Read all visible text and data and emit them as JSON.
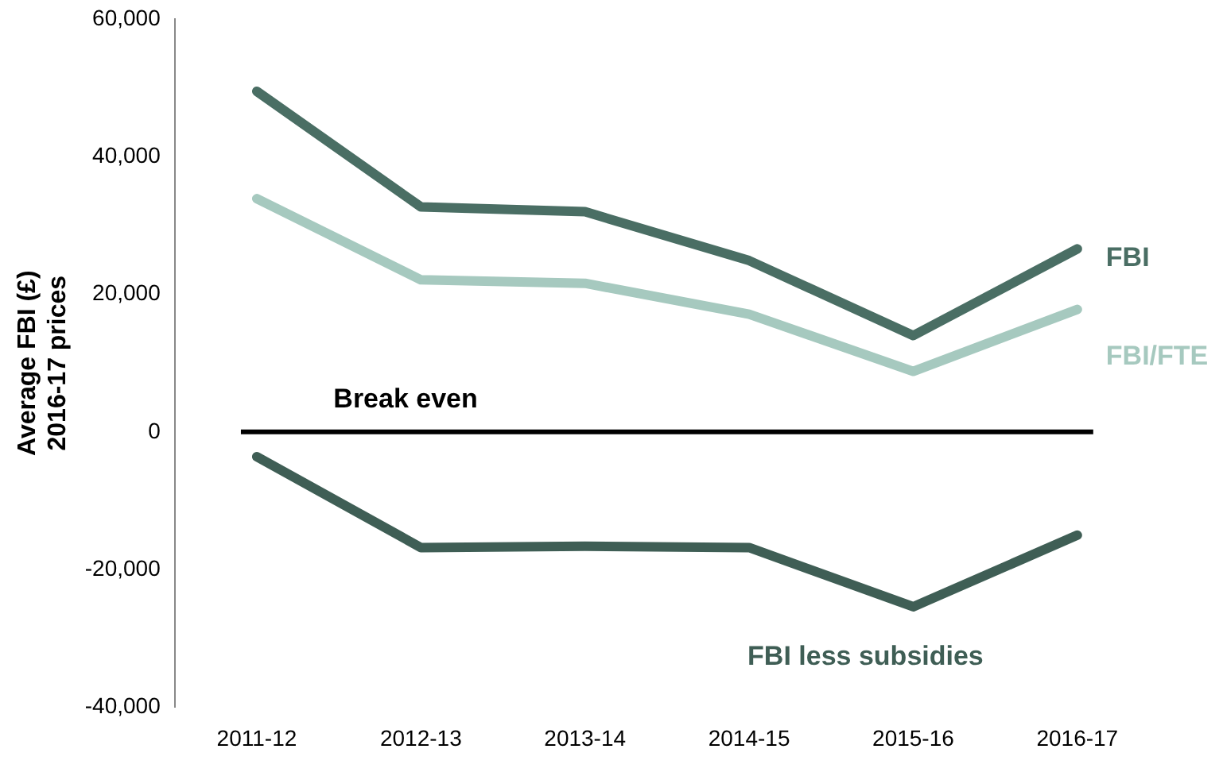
{
  "chart_data": {
    "type": "line",
    "ylabel": "Average FBI (£)\n2016-17 prices",
    "categories": [
      "2011-12",
      "2012-13",
      "2013-14",
      "2014-15",
      "2015-16",
      "2016-17"
    ],
    "series": [
      {
        "name": "FBI",
        "color": "#4a6e64",
        "values": [
          49500,
          32700,
          32000,
          24900,
          14000,
          26600
        ]
      },
      {
        "name": "FBI/FTE",
        "color": "#a6c9bf",
        "values": [
          33900,
          22100,
          21600,
          17100,
          8800,
          17800
        ]
      },
      {
        "name": "FBI less subsidies",
        "color": "#3f5e55",
        "values": [
          -3600,
          -16800,
          -16600,
          -16800,
          -25400,
          -15000
        ]
      }
    ],
    "ylim": [
      -40000,
      60000
    ],
    "yticks": [
      {
        "value": -40000,
        "label": "-40,000"
      },
      {
        "value": -20000,
        "label": "-20,000"
      },
      0,
      {
        "value": 20000,
        "label": "20,000"
      },
      {
        "value": 40000,
        "label": "40,000"
      },
      {
        "value": 60000,
        "label": "60,000"
      }
    ],
    "ref_lines": [
      {
        "axis": "y",
        "value": 0,
        "label": "Break even",
        "color": "#000000"
      }
    ],
    "grid": false,
    "legend": false,
    "marker": "none",
    "line_style": "solid"
  }
}
